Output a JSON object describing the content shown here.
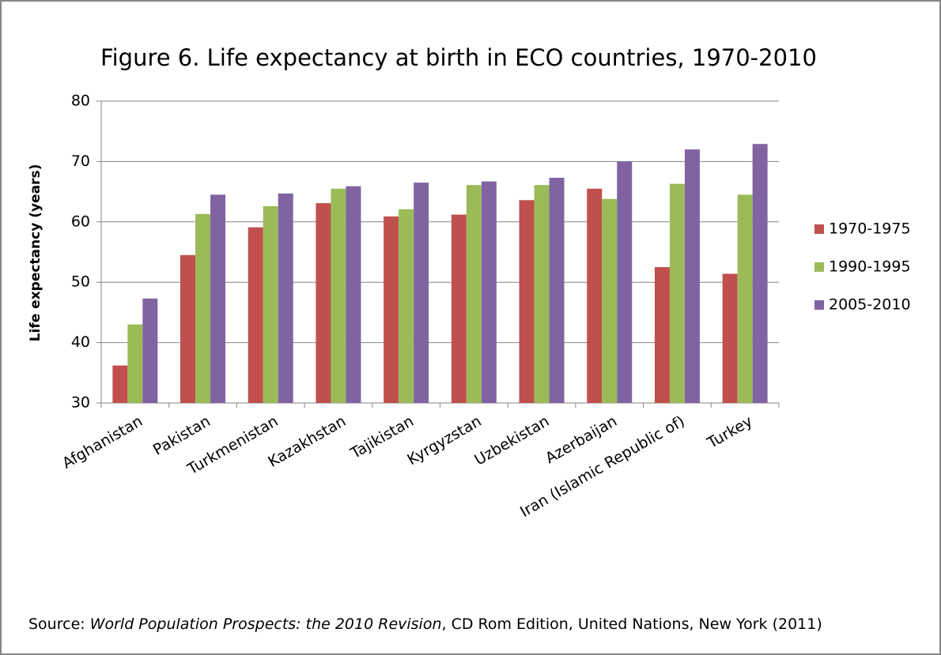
{
  "chart_data": {
    "type": "bar",
    "title": "Figure 6. Life expectancy at birth in ECO countries, 1970-2010",
    "y_label": "Life expectancy (years)",
    "categories": [
      "Afghanistan",
      "Pakistan",
      "Turkmenistan",
      "Kazakhstan",
      "Tajikistan",
      "Kyrgyzstan",
      "Uzbekistan",
      "Azerbaijan",
      "Iran (Islamic Republic of)",
      "Turkey"
    ],
    "series": [
      {
        "name": "1970-1975",
        "color": "#c0504d",
        "values": [
          36.2,
          54.5,
          59.1,
          63.1,
          60.9,
          61.2,
          63.6,
          65.5,
          52.5,
          51.4
        ]
      },
      {
        "name": "1990-1995",
        "color": "#9bbb59",
        "values": [
          43.0,
          61.3,
          62.6,
          65.5,
          62.1,
          66.1,
          66.1,
          63.8,
          66.3,
          64.5
        ]
      },
      {
        "name": "2005-2010",
        "color": "#8064a2",
        "values": [
          47.3,
          64.5,
          64.7,
          65.9,
          66.5,
          66.7,
          67.3,
          70.0,
          72.0,
          72.9
        ]
      }
    ],
    "ylim": [
      30,
      80
    ],
    "yticks": [
      30,
      40,
      50,
      60,
      70,
      80
    ],
    "grid": true,
    "legend": "right",
    "source": {
      "prefix": "Source: ",
      "title": "World Population Prospects: the 2010 Revision",
      "suffix": ", CD Rom Edition, United Nations, New York (2011)"
    }
  }
}
